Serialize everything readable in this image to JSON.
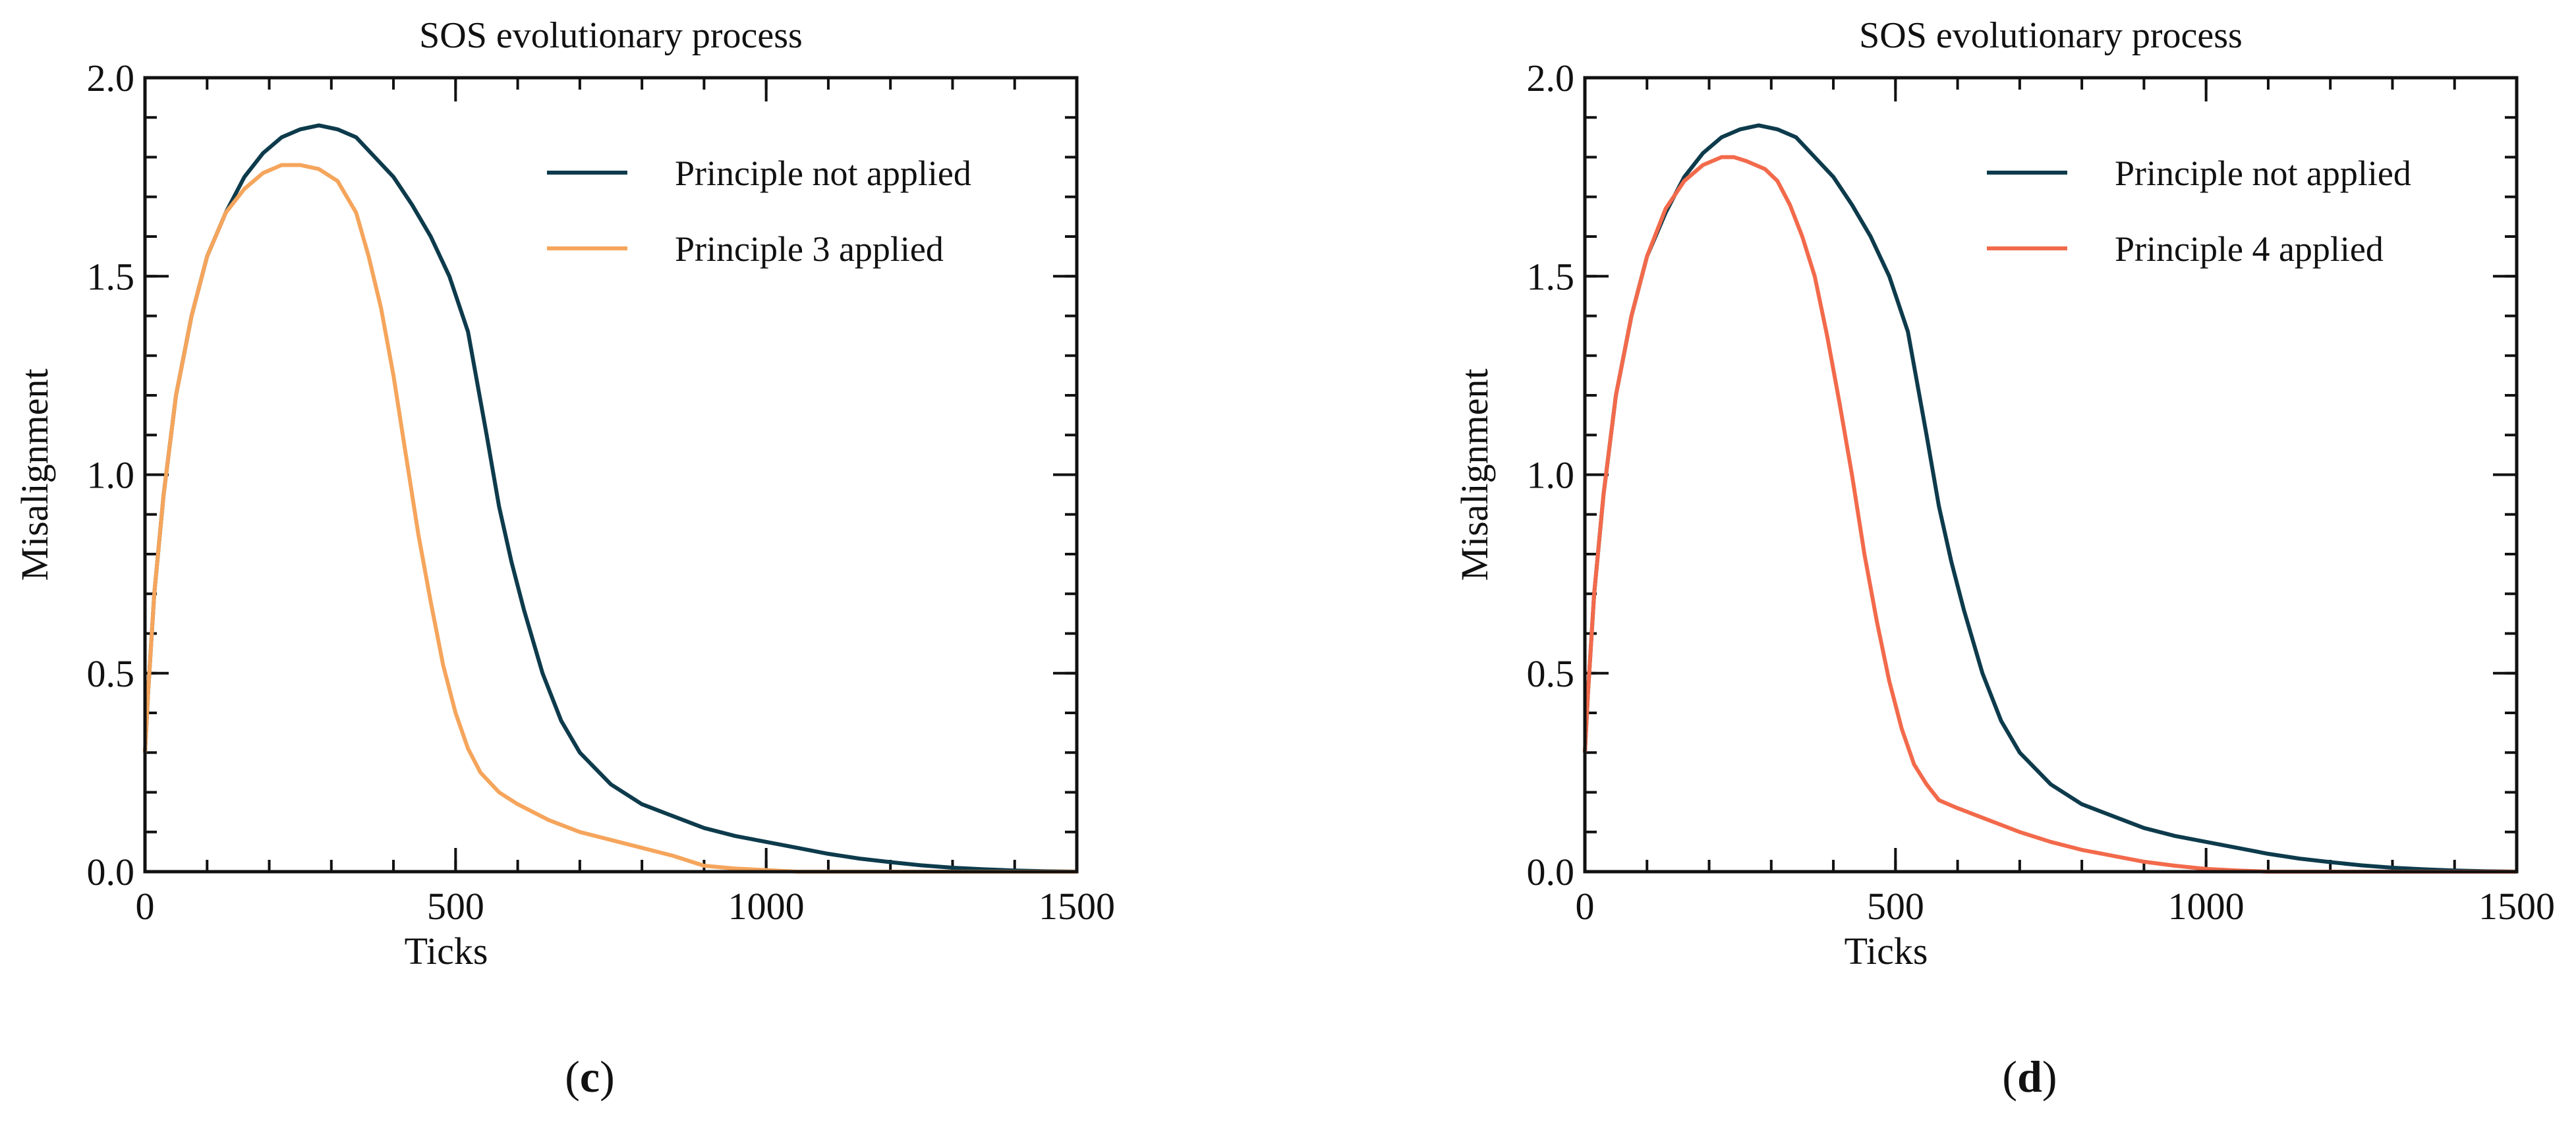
{
  "chart_data": [
    {
      "type": "line",
      "title": "SOS evolutionary process",
      "xlabel": "Ticks",
      "ylabel": "Misalignment",
      "xlim": [
        0,
        1500
      ],
      "ylim": [
        0,
        2.0
      ],
      "xticks": [
        "0",
        "500",
        "1000",
        "1500"
      ],
      "yticks": [
        "0.0",
        "0.5",
        "1.0",
        "1.5",
        "2.0"
      ],
      "caption_letter": "c",
      "legend_position": "top-right",
      "series": [
        {
          "name": "Principle not applied",
          "color": "#0d3b4c",
          "x": [
            0,
            5,
            15,
            30,
            50,
            75,
            100,
            130,
            160,
            190,
            220,
            250,
            280,
            310,
            340,
            370,
            400,
            430,
            460,
            490,
            520,
            550,
            570,
            590,
            610,
            640,
            670,
            700,
            750,
            800,
            850,
            900,
            950,
            1000,
            1050,
            1100,
            1150,
            1200,
            1250,
            1300,
            1350,
            1400,
            1450,
            1500
          ],
          "values": [
            0.3,
            0.45,
            0.7,
            0.95,
            1.2,
            1.4,
            1.55,
            1.66,
            1.75,
            1.81,
            1.85,
            1.87,
            1.88,
            1.87,
            1.85,
            1.8,
            1.75,
            1.68,
            1.6,
            1.5,
            1.36,
            1.1,
            0.92,
            0.78,
            0.66,
            0.5,
            0.38,
            0.3,
            0.22,
            0.17,
            0.14,
            0.11,
            0.09,
            0.075,
            0.06,
            0.045,
            0.033,
            0.024,
            0.016,
            0.01,
            0.006,
            0.003,
            0.001,
            0.0
          ]
        },
        {
          "name": "Principle 3 applied",
          "color": "#f5a55c",
          "x": [
            0,
            5,
            15,
            30,
            50,
            75,
            100,
            130,
            160,
            190,
            220,
            250,
            280,
            310,
            340,
            360,
            380,
            400,
            420,
            440,
            460,
            480,
            500,
            520,
            540,
            570,
            600,
            650,
            700,
            750,
            800,
            850,
            900,
            950,
            1000,
            1050,
            1100,
            1500
          ],
          "values": [
            0.3,
            0.45,
            0.7,
            0.95,
            1.2,
            1.4,
            1.55,
            1.66,
            1.72,
            1.76,
            1.78,
            1.78,
            1.77,
            1.74,
            1.66,
            1.55,
            1.42,
            1.25,
            1.05,
            0.85,
            0.68,
            0.52,
            0.4,
            0.31,
            0.25,
            0.2,
            0.17,
            0.13,
            0.1,
            0.08,
            0.06,
            0.04,
            0.015,
            0.008,
            0.004,
            0.0,
            0.0,
            0.0
          ]
        }
      ]
    },
    {
      "type": "line",
      "title": "SOS evolutionary process",
      "xlabel": "Ticks",
      "ylabel": "Misalignment",
      "xlim": [
        0,
        1500
      ],
      "ylim": [
        0,
        2.0
      ],
      "xticks": [
        "0",
        "500",
        "1000",
        "1500"
      ],
      "yticks": [
        "0.0",
        "0.5",
        "1.0",
        "1.5",
        "2.0"
      ],
      "caption_letter": "d",
      "legend_position": "top-right",
      "series": [
        {
          "name": "Principle not applied",
          "color": "#0d3b4c",
          "x": [
            0,
            5,
            15,
            30,
            50,
            75,
            100,
            130,
            160,
            190,
            220,
            250,
            280,
            310,
            340,
            370,
            400,
            430,
            460,
            490,
            520,
            550,
            570,
            590,
            610,
            640,
            670,
            700,
            750,
            800,
            850,
            900,
            950,
            1000,
            1050,
            1100,
            1150,
            1200,
            1250,
            1300,
            1350,
            1400,
            1450,
            1500
          ],
          "values": [
            0.3,
            0.45,
            0.7,
            0.95,
            1.2,
            1.4,
            1.55,
            1.66,
            1.75,
            1.81,
            1.85,
            1.87,
            1.88,
            1.87,
            1.85,
            1.8,
            1.75,
            1.68,
            1.6,
            1.5,
            1.36,
            1.1,
            0.92,
            0.78,
            0.66,
            0.5,
            0.38,
            0.3,
            0.22,
            0.17,
            0.14,
            0.11,
            0.09,
            0.075,
            0.06,
            0.045,
            0.033,
            0.024,
            0.016,
            0.01,
            0.006,
            0.003,
            0.001,
            0.0
          ]
        },
        {
          "name": "Principle 4 applied",
          "color": "#f26a4b",
          "x": [
            0,
            5,
            15,
            30,
            50,
            75,
            100,
            130,
            160,
            190,
            220,
            240,
            260,
            290,
            310,
            330,
            350,
            370,
            390,
            410,
            430,
            450,
            470,
            490,
            510,
            530,
            550,
            570,
            600,
            650,
            700,
            750,
            800,
            850,
            900,
            950,
            1000,
            1050,
            1100,
            1500
          ],
          "values": [
            0.3,
            0.45,
            0.7,
            0.95,
            1.2,
            1.4,
            1.55,
            1.67,
            1.74,
            1.78,
            1.8,
            1.8,
            1.79,
            1.77,
            1.74,
            1.68,
            1.6,
            1.5,
            1.35,
            1.18,
            1.0,
            0.8,
            0.63,
            0.48,
            0.36,
            0.27,
            0.22,
            0.18,
            0.16,
            0.13,
            0.1,
            0.075,
            0.055,
            0.04,
            0.025,
            0.015,
            0.007,
            0.003,
            0.0,
            0.0
          ]
        }
      ]
    }
  ]
}
